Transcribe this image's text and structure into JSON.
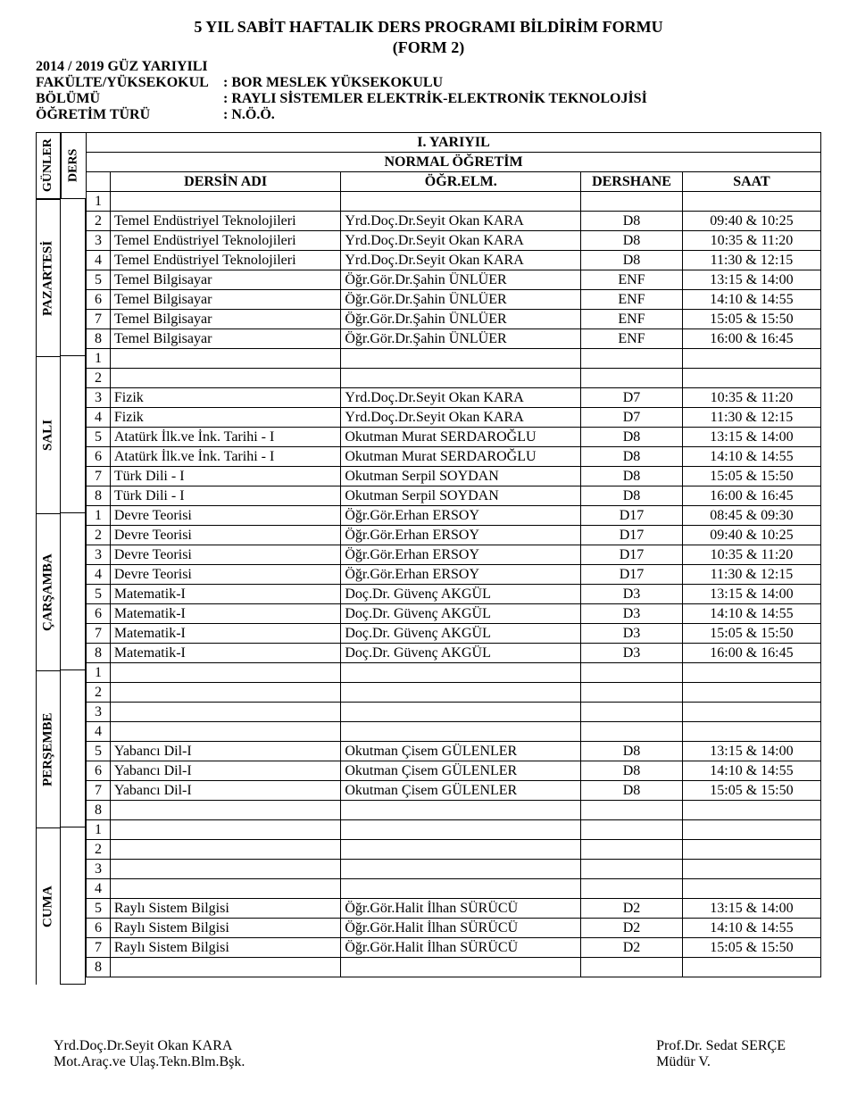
{
  "title_line1": "5 YIL SABİT HAFTALIK DERS PROGRAMI BİLDİRİM FORMU",
  "title_line2": "(FORM 2)",
  "header": {
    "semester_label": "2014 / 2019 GÜZ YARIYILI",
    "fakulte_label": "FAKÜLTE/YÜKSEKOKUL",
    "fakulte_value": ": BOR MESLEK YÜKSEKOKULU",
    "bolum_label": "BÖLÜMÜ",
    "bolum_value": ": RAYLI SİSTEMLER ELEKTRİK-ELEKTRONİK TEKNOLOJİSİ",
    "ogretim_label": "ÖĞRETİM TÜRÜ",
    "ogretim_value": ": N.Ö.Ö."
  },
  "labels": {
    "gunler": "GÜNLER",
    "ders": "DERS",
    "yariyil": "I. YARIYIL",
    "normal": "NORMAL ÖĞRETİM",
    "dersin_adi": "DERSİN ADI",
    "ogr_elm": "ÖĞR.ELM.",
    "dershane": "DERSHANE",
    "saat": "SAAT"
  },
  "days": [
    {
      "name": "PAZARTESİ",
      "rows": [
        {
          "n": "1",
          "ders": "",
          "ogr": "",
          "room": "",
          "saat": ""
        },
        {
          "n": "2",
          "ders": "Temel Endüstriyel Teknolojileri",
          "ogr": "Yrd.Doç.Dr.Seyit Okan KARA",
          "room": "D8",
          "saat": "09:40 & 10:25"
        },
        {
          "n": "3",
          "ders": "Temel Endüstriyel Teknolojileri",
          "ogr": "Yrd.Doç.Dr.Seyit Okan KARA",
          "room": "D8",
          "saat": "10:35 & 11:20"
        },
        {
          "n": "4",
          "ders": "Temel Endüstriyel Teknolojileri",
          "ogr": "Yrd.Doç.Dr.Seyit Okan KARA",
          "room": "D8",
          "saat": "11:30 & 12:15"
        },
        {
          "n": "5",
          "ders": "Temel Bilgisayar",
          "ogr": "Öğr.Gör.Dr.Şahin ÜNLÜER",
          "room": "ENF",
          "saat": "13:15 & 14:00"
        },
        {
          "n": "6",
          "ders": "Temel Bilgisayar",
          "ogr": "Öğr.Gör.Dr.Şahin ÜNLÜER",
          "room": "ENF",
          "saat": "14:10 & 14:55"
        },
        {
          "n": "7",
          "ders": "Temel Bilgisayar",
          "ogr": "Öğr.Gör.Dr.Şahin ÜNLÜER",
          "room": "ENF",
          "saat": "15:05 & 15:50"
        },
        {
          "n": "8",
          "ders": "Temel Bilgisayar",
          "ogr": "Öğr.Gör.Dr.Şahin ÜNLÜER",
          "room": "ENF",
          "saat": "16:00 & 16:45"
        }
      ]
    },
    {
      "name": "SALI",
      "rows": [
        {
          "n": "1",
          "ders": "",
          "ogr": "",
          "room": "",
          "saat": ""
        },
        {
          "n": "2",
          "ders": "",
          "ogr": "",
          "room": "",
          "saat": ""
        },
        {
          "n": "3",
          "ders": "Fizik",
          "ogr": "Yrd.Doç.Dr.Seyit Okan KARA",
          "room": "D7",
          "saat": "10:35 & 11:20"
        },
        {
          "n": "4",
          "ders": "Fizik",
          "ogr": "Yrd.Doç.Dr.Seyit Okan KARA",
          "room": "D7",
          "saat": "11:30 & 12:15"
        },
        {
          "n": "5",
          "ders": "Atatürk İlk.ve İnk. Tarihi - I",
          "ogr": "Okutman Murat SERDAROĞLU",
          "room": "D8",
          "saat": "13:15 & 14:00"
        },
        {
          "n": "6",
          "ders": "Atatürk İlk.ve İnk. Tarihi - I",
          "ogr": "Okutman Murat SERDAROĞLU",
          "room": "D8",
          "saat": "14:10 & 14:55"
        },
        {
          "n": "7",
          "ders": "Türk Dili - I",
          "ogr": "Okutman Serpil SOYDAN",
          "room": "D8",
          "saat": "15:05 & 15:50"
        },
        {
          "n": "8",
          "ders": "Türk Dili - I",
          "ogr": "Okutman Serpil SOYDAN",
          "room": "D8",
          "saat": "16:00 & 16:45"
        }
      ]
    },
    {
      "name": "ÇARŞAMBA",
      "rows": [
        {
          "n": "1",
          "ders": "Devre Teorisi",
          "ogr": "Öğr.Gör.Erhan ERSOY",
          "room": "D17",
          "saat": "08:45 & 09:30"
        },
        {
          "n": "2",
          "ders": "Devre Teorisi",
          "ogr": "Öğr.Gör.Erhan ERSOY",
          "room": "D17",
          "saat": "09:40 & 10:25"
        },
        {
          "n": "3",
          "ders": "Devre Teorisi",
          "ogr": "Öğr.Gör.Erhan ERSOY",
          "room": "D17",
          "saat": "10:35 & 11:20"
        },
        {
          "n": "4",
          "ders": "Devre Teorisi",
          "ogr": "Öğr.Gör.Erhan ERSOY",
          "room": "D17",
          "saat": "11:30 & 12:15"
        },
        {
          "n": "5",
          "ders": "Matematik-I",
          "ogr": "Doç.Dr. Güvenç AKGÜL",
          "room": "D3",
          "saat": "13:15 & 14:00"
        },
        {
          "n": "6",
          "ders": "Matematik-I",
          "ogr": "Doç.Dr. Güvenç AKGÜL",
          "room": "D3",
          "saat": "14:10 & 14:55"
        },
        {
          "n": "7",
          "ders": "Matematik-I",
          "ogr": "Doç.Dr. Güvenç AKGÜL",
          "room": "D3",
          "saat": "15:05 & 15:50"
        },
        {
          "n": "8",
          "ders": "Matematik-I",
          "ogr": "Doç.Dr. Güvenç AKGÜL",
          "room": "D3",
          "saat": "16:00 & 16:45"
        }
      ]
    },
    {
      "name": "PERŞEMBE",
      "rows": [
        {
          "n": "1",
          "ders": "",
          "ogr": "",
          "room": "",
          "saat": ""
        },
        {
          "n": "2",
          "ders": "",
          "ogr": "",
          "room": "",
          "saat": ""
        },
        {
          "n": "3",
          "ders": "",
          "ogr": "",
          "room": "",
          "saat": ""
        },
        {
          "n": "4",
          "ders": "",
          "ogr": "",
          "room": "",
          "saat": ""
        },
        {
          "n": "5",
          "ders": "Yabancı Dil-I",
          "ogr": "Okutman Çisem GÜLENLER",
          "room": "D8",
          "saat": "13:15 & 14:00"
        },
        {
          "n": "6",
          "ders": "Yabancı Dil-I",
          "ogr": "Okutman Çisem GÜLENLER",
          "room": "D8",
          "saat": "14:10 & 14:55"
        },
        {
          "n": "7",
          "ders": "Yabancı Dil-I",
          "ogr": "Okutman Çisem GÜLENLER",
          "room": "D8",
          "saat": "15:05 & 15:50"
        },
        {
          "n": "8",
          "ders": "",
          "ogr": "",
          "room": "",
          "saat": ""
        }
      ]
    },
    {
      "name": "CUMA",
      "rows": [
        {
          "n": "1",
          "ders": "",
          "ogr": "",
          "room": "",
          "saat": ""
        },
        {
          "n": "2",
          "ders": "",
          "ogr": "",
          "room": "",
          "saat": ""
        },
        {
          "n": "3",
          "ders": "",
          "ogr": "",
          "room": "",
          "saat": ""
        },
        {
          "n": "4",
          "ders": "",
          "ogr": "",
          "room": "",
          "saat": ""
        },
        {
          "n": "5",
          "ders": "Raylı Sistem Bilgisi",
          "ogr": "Öğr.Gör.Halit İlhan SÜRÜCÜ",
          "room": "D2",
          "saat": "13:15 & 14:00"
        },
        {
          "n": "6",
          "ders": "Raylı Sistem Bilgisi",
          "ogr": "Öğr.Gör.Halit İlhan SÜRÜCÜ",
          "room": "D2",
          "saat": "14:10 & 14:55"
        },
        {
          "n": "7",
          "ders": "Raylı Sistem Bilgisi",
          "ogr": "Öğr.Gör.Halit İlhan SÜRÜCÜ",
          "room": "D2",
          "saat": "15:05 & 15:50"
        },
        {
          "n": "8",
          "ders": "",
          "ogr": "",
          "room": "",
          "saat": ""
        }
      ]
    }
  ],
  "footer": {
    "left_name": "Yrd.Doç.Dr.Seyit Okan KARA",
    "left_title": "Mot.Araç.ve Ulaş.Tekn.Blm.Bşk.",
    "right_name": "Prof.Dr. Sedat SERÇE",
    "right_title": "Müdür V."
  }
}
